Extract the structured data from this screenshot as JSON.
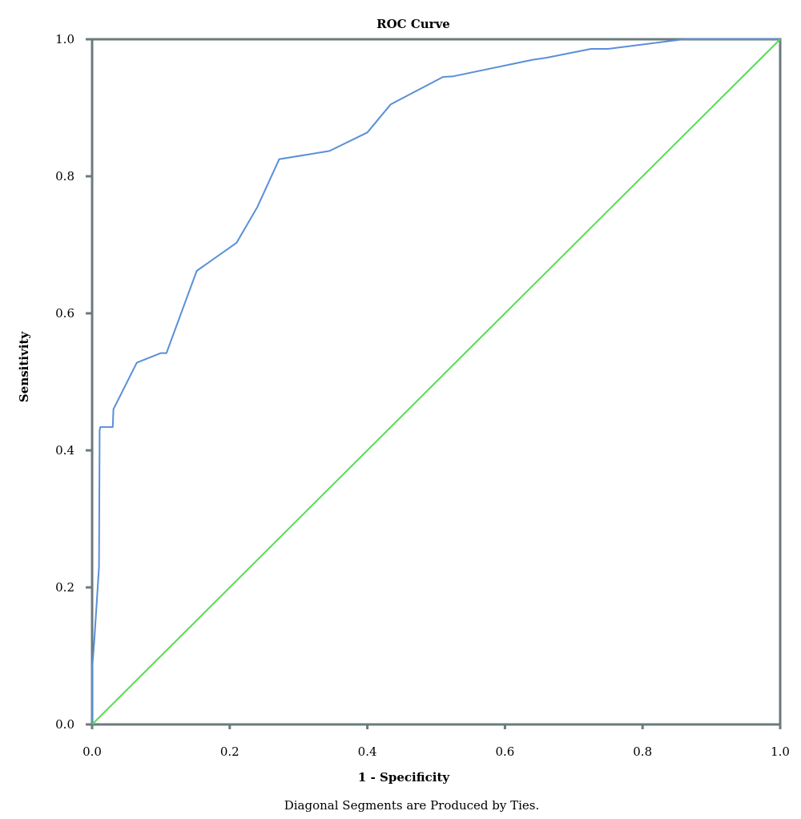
{
  "chart_data": {
    "type": "line",
    "title": "ROC Curve",
    "xlabel": "1 - Specificity",
    "ylabel": "Sensitivity",
    "footnote": "Diagonal Segments are Produced by Ties.",
    "xlim": [
      0,
      1
    ],
    "ylim": [
      0,
      1
    ],
    "x_ticks": [
      "0.0",
      "0.2",
      "0.4",
      "0.6",
      "0.8",
      "1.0"
    ],
    "y_ticks": [
      "0.0",
      "0.2",
      "0.4",
      "0.6",
      "0.8",
      "1.0"
    ],
    "grid": false,
    "series": [
      {
        "color": "#5a8fd8",
        "x": [
          0.0,
          0.0,
          0.0,
          0.003,
          0.01,
          0.011,
          0.012,
          0.03,
          0.031,
          0.065,
          0.1,
          0.108,
          0.152,
          0.21,
          0.24,
          0.272,
          0.345,
          0.4,
          0.434,
          0.51,
          0.525,
          0.64,
          0.66,
          0.725,
          0.75,
          0.86,
          1.0
        ],
        "y": [
          0.0,
          0.04,
          0.08,
          0.12,
          0.23,
          0.43,
          0.434,
          0.434,
          0.46,
          0.528,
          0.542,
          0.542,
          0.662,
          0.703,
          0.755,
          0.825,
          0.837,
          0.864,
          0.905,
          0.945,
          0.946,
          0.97,
          0.973,
          0.986,
          0.986,
          1.0,
          1.0
        ]
      },
      {
        "color": "#55dd55",
        "x": [
          0.0,
          1.0
        ],
        "y": [
          0.0,
          1.0
        ]
      }
    ]
  }
}
